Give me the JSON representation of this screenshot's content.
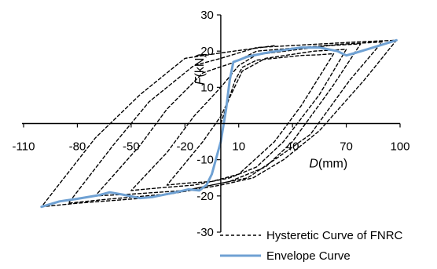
{
  "chart_data": {
    "type": "line",
    "xlabel": {
      "var": "D",
      "unit": "(mm)"
    },
    "ylabel": {
      "var": "F",
      "unit": "(kN)"
    },
    "xlim": [
      -110,
      100
    ],
    "ylim": [
      -30,
      30
    ],
    "x_ticks": [
      -110,
      -80,
      -50,
      -20,
      10,
      40,
      70,
      100
    ],
    "x_tick_labels": [
      "-110",
      "-80",
      "-50",
      "-20",
      "10",
      "40",
      "70",
      "100"
    ],
    "y_ticks": [
      -30,
      -20,
      -10,
      0,
      10,
      20,
      30
    ],
    "y_tick_labels": [
      "-30",
      "-20",
      "-10",
      "0",
      "10",
      "20",
      "30"
    ],
    "legend_position": "bottom-right",
    "series": [
      {
        "name": "Hysteretic Curve of FNRC",
        "style": "dashed",
        "color": "#000000",
        "points": [
          [
            0,
            0
          ],
          [
            8,
            12
          ],
          [
            12,
            15.5
          ],
          [
            20,
            17.5
          ],
          [
            45,
            18.8
          ],
          [
            55,
            19
          ],
          [
            63,
            19.3
          ],
          [
            45,
            5
          ],
          [
            30,
            -5
          ],
          [
            10,
            -14
          ],
          [
            -5,
            -16
          ],
          [
            -20,
            -16.5
          ],
          [
            -30,
            -17
          ],
          [
            -10,
            -5
          ],
          [
            0,
            2
          ],
          [
            12,
            14.5
          ],
          [
            25,
            18
          ],
          [
            52,
            20
          ],
          [
            70,
            20.5
          ],
          [
            55,
            8
          ],
          [
            35,
            -5
          ],
          [
            20,
            -12
          ],
          [
            5,
            -15
          ],
          [
            -15,
            -17
          ],
          [
            -35,
            -17.8
          ],
          [
            -50,
            -18.5
          ],
          [
            -30,
            -8
          ],
          [
            -15,
            2
          ],
          [
            0,
            10
          ],
          [
            10,
            16
          ],
          [
            20,
            19
          ],
          [
            60,
            21.5
          ],
          [
            78,
            22
          ],
          [
            62,
            10
          ],
          [
            40,
            -5
          ],
          [
            25,
            -12
          ],
          [
            5,
            -16
          ],
          [
            -20,
            -18.5
          ],
          [
            -50,
            -19.5
          ],
          [
            -70,
            -20
          ],
          [
            -45,
            -6
          ],
          [
            -30,
            4
          ],
          [
            -10,
            14
          ],
          [
            8,
            17
          ],
          [
            20,
            20
          ],
          [
            70,
            22
          ],
          [
            90,
            22.5
          ],
          [
            72,
            12
          ],
          [
            50,
            -3
          ],
          [
            30,
            -10
          ],
          [
            15,
            -15
          ],
          [
            0,
            -16.5
          ],
          [
            -30,
            -19.5
          ],
          [
            -65,
            -21
          ],
          [
            -85,
            -22
          ],
          [
            -60,
            -6
          ],
          [
            -40,
            6
          ],
          [
            -15,
            16
          ],
          [
            0,
            18
          ],
          [
            20,
            21
          ],
          [
            75,
            22.5
          ],
          [
            98,
            23
          ],
          [
            80,
            12
          ],
          [
            55,
            -2
          ],
          [
            35,
            -10
          ],
          [
            18,
            -15
          ],
          [
            0,
            -17
          ],
          [
            -40,
            -20.5
          ],
          [
            -80,
            -22
          ],
          [
            -100,
            -23
          ],
          [
            -70,
            -4
          ],
          [
            -45,
            8
          ],
          [
            -20,
            18
          ],
          [
            0,
            19.5
          ],
          [
            30,
            21.5
          ]
        ]
      },
      {
        "name": "Envelope Curve",
        "style": "solid",
        "color": "#6fa1d3",
        "points": [
          [
            -100,
            -23
          ],
          [
            -90,
            -21.5
          ],
          [
            -80,
            -20.8
          ],
          [
            -68,
            -19.8
          ],
          [
            -62,
            -19
          ],
          [
            -55,
            -19.6
          ],
          [
            -45,
            -20.6
          ],
          [
            -38,
            -20.3
          ],
          [
            -25,
            -19
          ],
          [
            -18,
            -18.2
          ],
          [
            -12,
            -18.5
          ],
          [
            -8,
            -17
          ],
          [
            -5,
            -14
          ],
          [
            0,
            -5
          ],
          [
            3,
            4
          ],
          [
            5,
            12
          ],
          [
            7,
            17
          ],
          [
            10,
            17.5
          ],
          [
            15,
            18.5
          ],
          [
            25,
            19.5
          ],
          [
            35,
            20.3
          ],
          [
            45,
            21
          ],
          [
            55,
            21
          ],
          [
            65,
            20
          ],
          [
            70,
            18.8
          ],
          [
            75,
            19.5
          ],
          [
            85,
            21
          ],
          [
            98,
            23
          ]
        ]
      }
    ]
  }
}
